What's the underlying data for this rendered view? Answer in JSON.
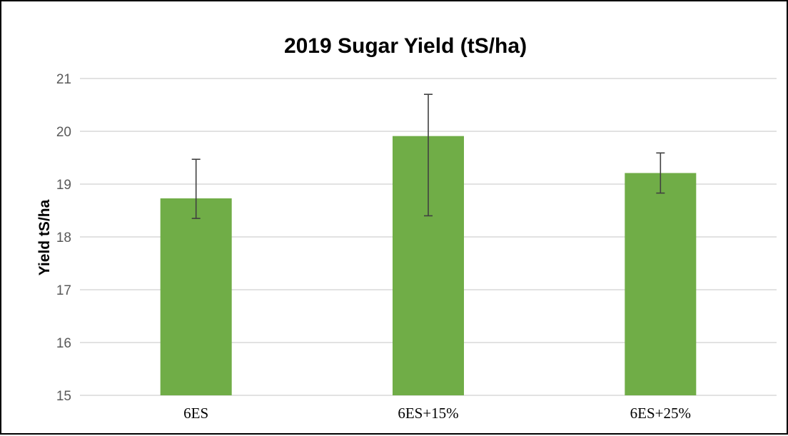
{
  "chart_data": {
    "type": "bar",
    "title": "2019 Sugar Yield (tS/ha)",
    "xlabel": "",
    "ylabel": "Yield tS/ha",
    "categories": [
      "6ES",
      "6ES+15%",
      "6ES+25%"
    ],
    "values": [
      18.73,
      19.91,
      19.21
    ],
    "error_low": [
      18.35,
      18.4,
      18.83
    ],
    "error_high": [
      19.47,
      20.7,
      19.59
    ],
    "ylim": [
      15,
      21
    ],
    "yticks": [
      "15",
      "16",
      "17",
      "18",
      "19",
      "20",
      "21"
    ],
    "grid": true,
    "legend": "none",
    "bar_color": "#70AD47",
    "gridline_color": "#D9D9D9",
    "errorbar_color": "#404040"
  }
}
